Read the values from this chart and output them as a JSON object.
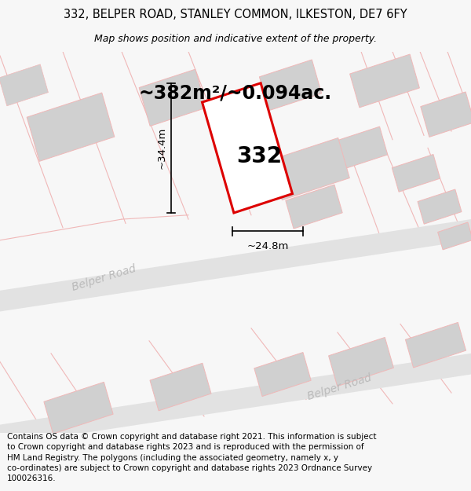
{
  "title_line1": "332, BELPER ROAD, STANLEY COMMON, ILKESTON, DE7 6FY",
  "title_line2": "Map shows position and indicative extent of the property.",
  "area_label": "~382m²/~0.094ac.",
  "width_label": "~24.8m",
  "height_label": "~34.4m",
  "property_number": "332",
  "footer": "Contains OS data © Crown copyright and database right 2021. This information is subject\nto Crown copyright and database rights 2023 and is reproduced with the permission of\nHM Land Registry. The polygons (including the associated geometry, namely x, y\nco-ordinates) are subject to Crown copyright and database rights 2023 Ordnance Survey\n100026316.",
  "bg_color": "#f7f7f7",
  "map_bg": "#ffffff",
  "road_color": "#e2e2e2",
  "building_fill": "#d0d0d0",
  "red_outline": "#dd0000",
  "pink_road": "#f0b8b8",
  "road_label_color": "#bbbbbb",
  "title_fontsize": 10.5,
  "subtitle_fontsize": 9.0,
  "area_fontsize": 17,
  "property_num_fontsize": 20,
  "dim_fontsize": 9.5,
  "footer_fontsize": 7.5
}
